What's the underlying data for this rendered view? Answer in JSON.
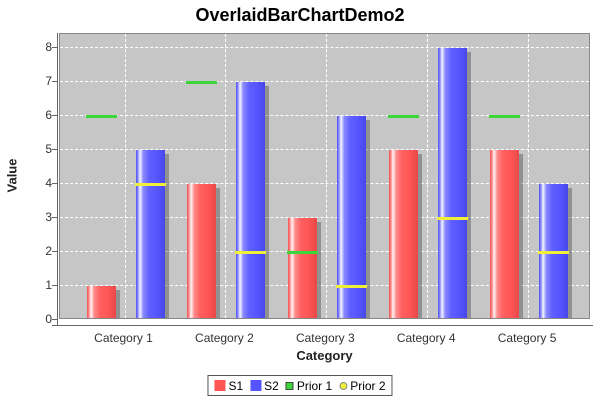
{
  "title": "OverlaidBarChartDemo2",
  "chart_data": {
    "type": "bar",
    "title": "OverlaidBarChartDemo2",
    "xlabel": "Category",
    "ylabel": "Value",
    "categories": [
      "Category 1",
      "Category 2",
      "Category 3",
      "Category 4",
      "Category 5"
    ],
    "series": [
      {
        "name": "S1",
        "render": "bar",
        "color": "#ff5555",
        "swatch": "square-large",
        "values": [
          1,
          4,
          3,
          5,
          5
        ]
      },
      {
        "name": "S2",
        "render": "bar",
        "color": "#5555ff",
        "swatch": "square-large",
        "values": [
          5,
          7,
          6,
          8,
          4
        ]
      },
      {
        "name": "Prior 1",
        "render": "level-line",
        "color": "#3ad63a",
        "swatch": "square-outline",
        "values": [
          6,
          7,
          2,
          6,
          6
        ],
        "overlays": "S1"
      },
      {
        "name": "Prior 2",
        "render": "level-line",
        "color": "#efef3a",
        "swatch": "circle-outline",
        "values": [
          4,
          2,
          1,
          3,
          2
        ],
        "overlays": "S2"
      }
    ],
    "ylim": [
      0,
      8.4
    ],
    "yticks": [
      0,
      1,
      2,
      3,
      4,
      5,
      6,
      7,
      8
    ],
    "grid": "white-dashed",
    "plot_background": "#c6c6c6",
    "legend_position": "bottom"
  }
}
